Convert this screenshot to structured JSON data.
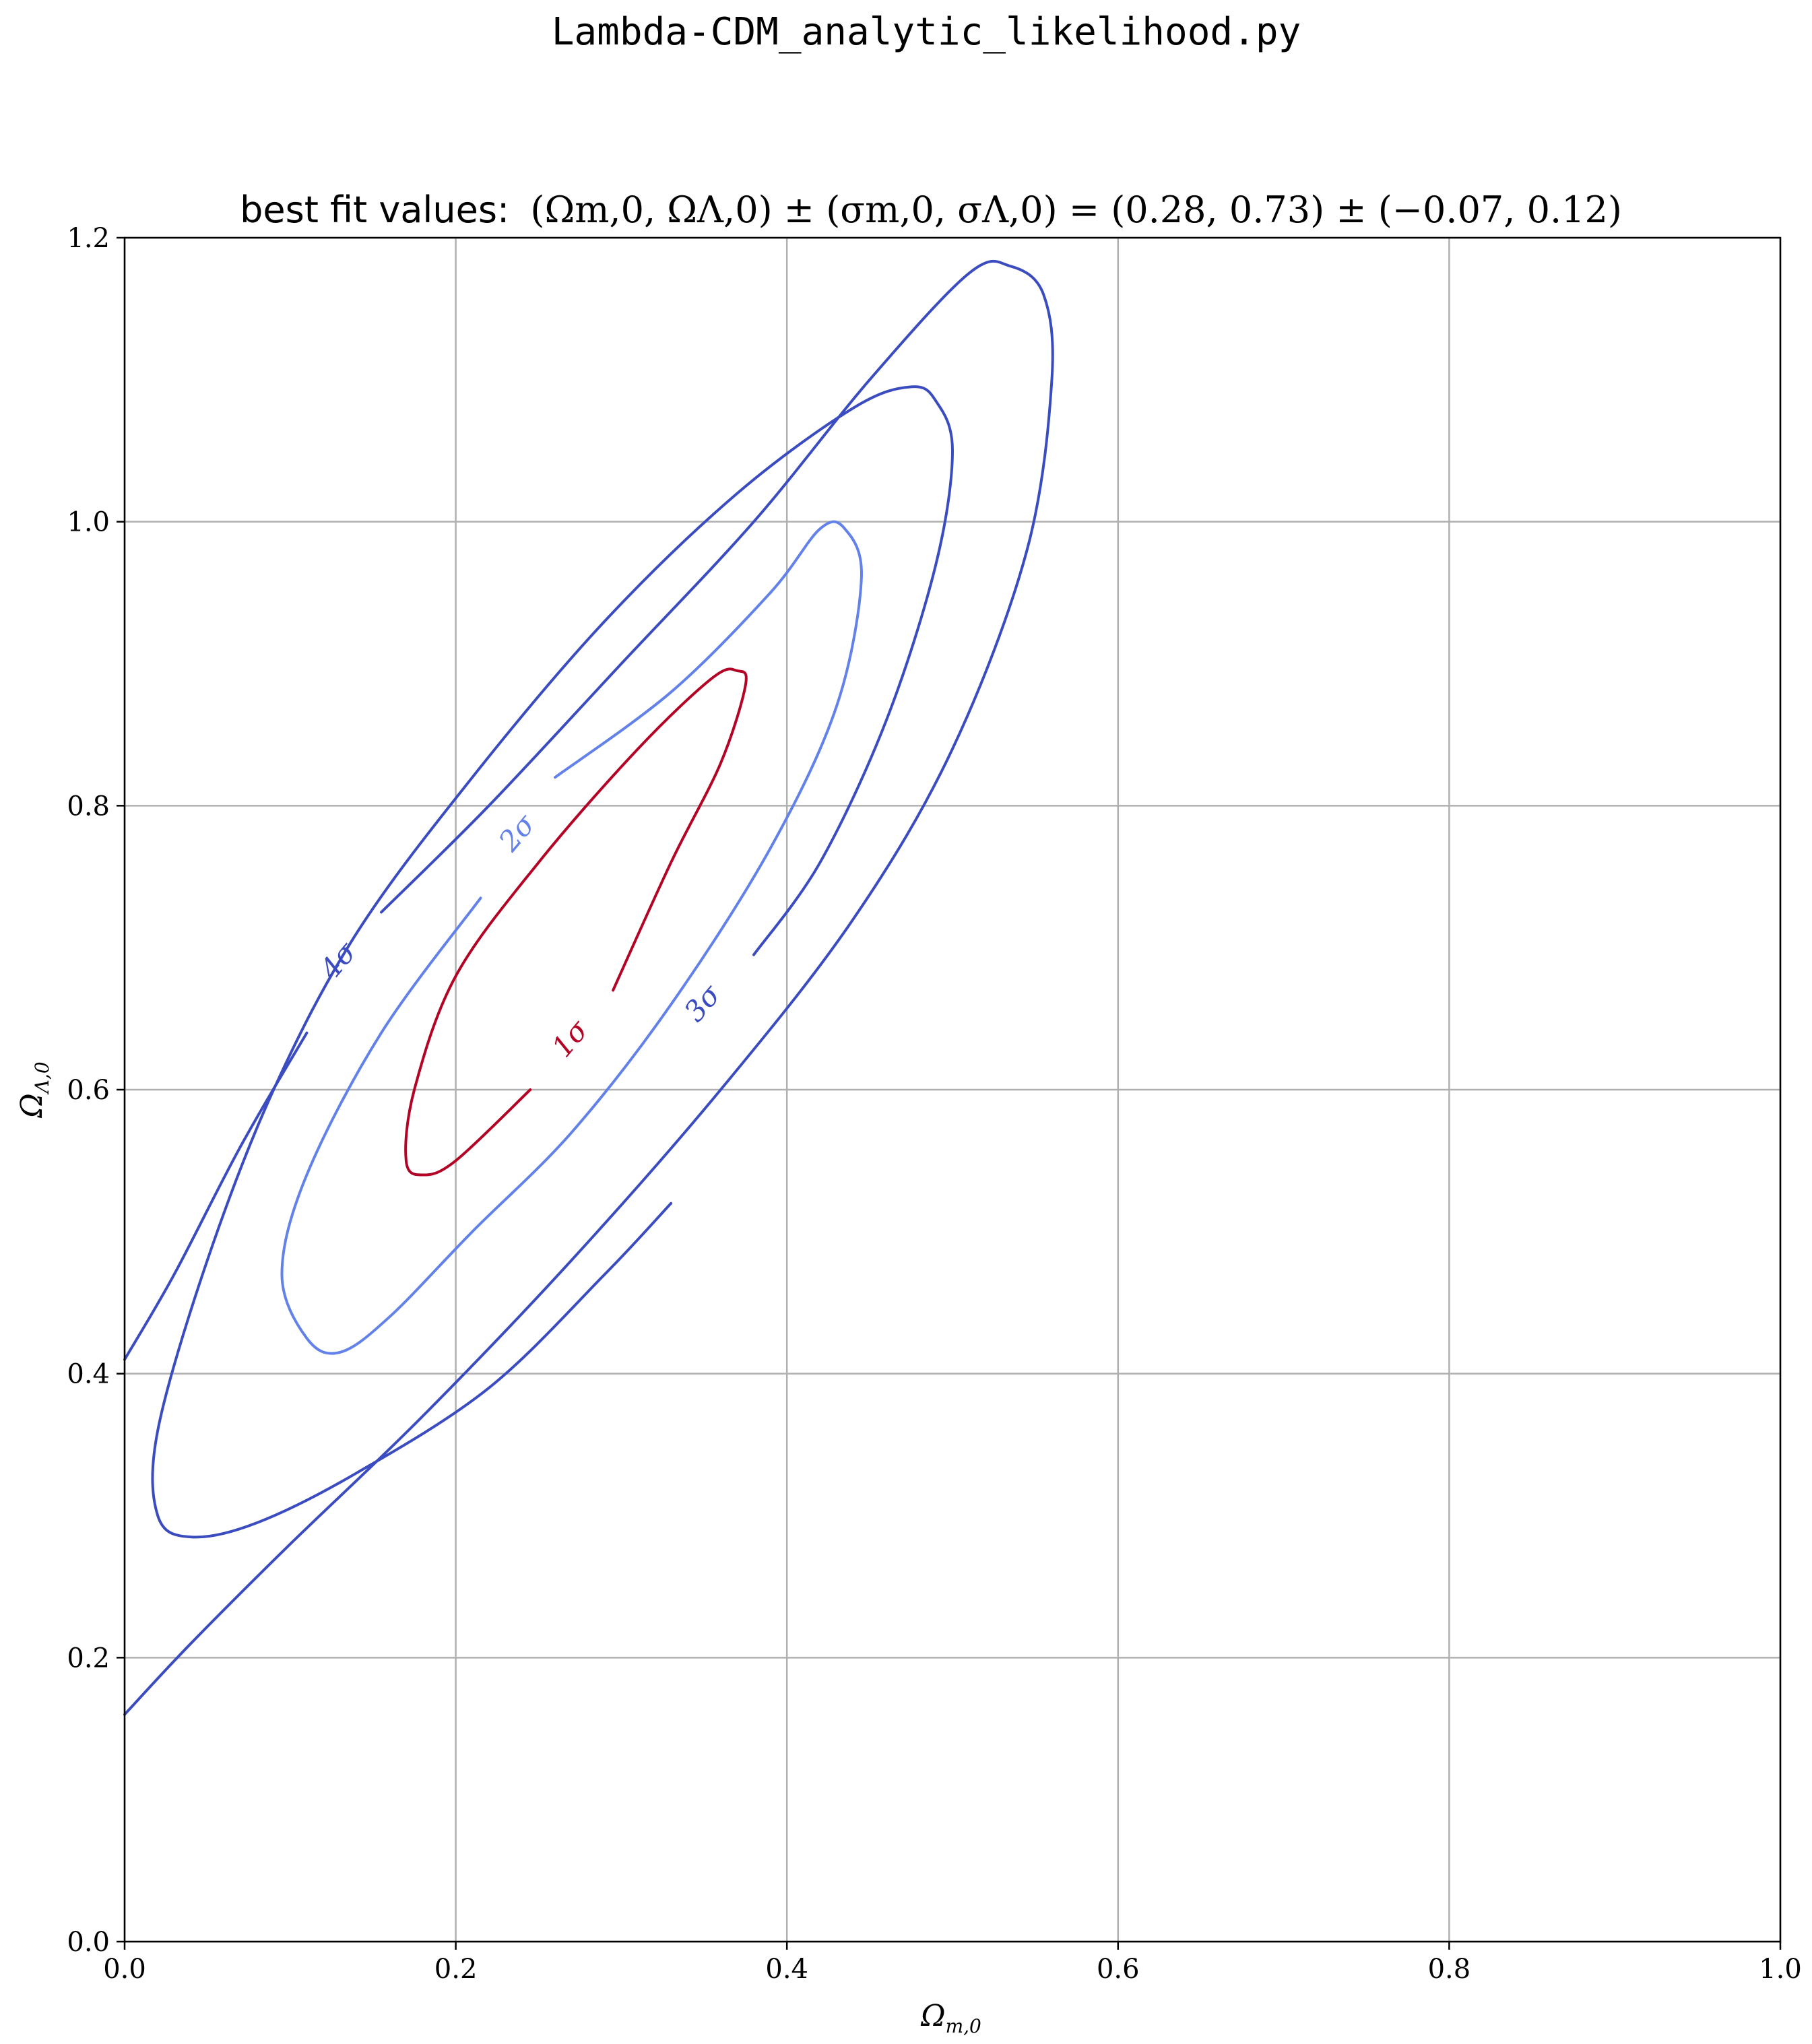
{
  "chart_data": {
    "type": "contour",
    "suptitle": "Lambda-CDM_analytic_likelihood.py",
    "title_prefix": "best fit values:",
    "title_math": "(Ωm,0, ΩΛ,0) ± (σm,0, σΛ,0) = (0.28, 0.73) ± (−0.07, 0.12)",
    "xlabel": {
      "symbol": "Ω",
      "sub": "m,0"
    },
    "ylabel": {
      "symbol": "Ω",
      "sub": "Λ,0"
    },
    "xlim": [
      0.0,
      1.0
    ],
    "ylim": [
      0.0,
      1.2
    ],
    "xticks": [
      "0.0",
      "0.2",
      "0.4",
      "0.6",
      "0.8",
      "1.0"
    ],
    "yticks": [
      "0.0",
      "0.2",
      "0.4",
      "0.6",
      "0.8",
      "1.0",
      "1.2"
    ],
    "xtick_values": [
      0.0,
      0.2,
      0.4,
      0.6,
      0.8,
      1.0
    ],
    "ytick_values": [
      0.0,
      0.2,
      0.4,
      0.6,
      0.8,
      1.0,
      1.2
    ],
    "grid": true,
    "levels": [
      {
        "label": "1σ",
        "color": "#b40426",
        "points": [
          [
            0.295,
            0.67
          ],
          [
            0.33,
            0.76
          ],
          [
            0.36,
            0.83
          ],
          [
            0.375,
            0.885
          ],
          [
            0.37,
            0.895
          ],
          [
            0.355,
            0.89
          ],
          [
            0.31,
            0.84
          ],
          [
            0.25,
            0.76
          ],
          [
            0.2,
            0.68
          ],
          [
            0.175,
            0.6
          ],
          [
            0.17,
            0.55
          ],
          [
            0.18,
            0.54
          ],
          [
            0.2,
            0.55
          ],
          [
            0.245,
            0.6
          ]
        ],
        "label_pos": [
          0.27,
          0.635
        ]
      },
      {
        "label": "2σ",
        "color": "#6282ea",
        "points": [
          [
            0.26,
            0.82
          ],
          [
            0.33,
            0.88
          ],
          [
            0.39,
            0.95
          ],
          [
            0.42,
            0.995
          ],
          [
            0.435,
            0.995
          ],
          [
            0.445,
            0.96
          ],
          [
            0.43,
            0.87
          ],
          [
            0.39,
            0.77
          ],
          [
            0.33,
            0.66
          ],
          [
            0.27,
            0.57
          ],
          [
            0.21,
            0.5
          ],
          [
            0.16,
            0.44
          ],
          [
            0.13,
            0.415
          ],
          [
            0.11,
            0.425
          ],
          [
            0.095,
            0.47
          ],
          [
            0.11,
            0.54
          ],
          [
            0.155,
            0.64
          ],
          [
            0.215,
            0.735
          ]
        ],
        "label_pos": [
          0.238,
          0.78
        ]
      },
      {
        "label": "3σ",
        "color": "#3b4cc0",
        "points": [
          [
            0.38,
            0.695
          ],
          [
            0.42,
            0.76
          ],
          [
            0.46,
            0.86
          ],
          [
            0.49,
            0.97
          ],
          [
            0.5,
            1.05
          ],
          [
            0.49,
            1.085
          ],
          [
            0.475,
            1.095
          ],
          [
            0.44,
            1.08
          ],
          [
            0.37,
            1.02
          ],
          [
            0.29,
            0.93
          ],
          [
            0.21,
            0.82
          ],
          [
            0.14,
            0.71
          ],
          [
            0.09,
            0.6
          ],
          [
            0.05,
            0.48
          ],
          [
            0.02,
            0.36
          ],
          [
            0.02,
            0.3
          ],
          [
            0.04,
            0.285
          ],
          [
            0.08,
            0.295
          ],
          [
            0.14,
            0.33
          ],
          [
            0.22,
            0.39
          ],
          [
            0.29,
            0.47
          ],
          [
            0.33,
            0.52
          ]
        ],
        "label_pos": [
          0.35,
          0.66
        ]
      },
      {
        "label": "4σ",
        "color": "#3b4cc0",
        "points": [
          [
            0.155,
            0.725
          ],
          [
            0.22,
            0.8
          ],
          [
            0.3,
            0.9
          ],
          [
            0.38,
            1.0
          ],
          [
            0.45,
            1.1
          ],
          [
            0.51,
            1.175
          ],
          [
            0.535,
            1.18
          ],
          [
            0.555,
            1.16
          ],
          [
            0.56,
            1.1
          ],
          [
            0.545,
            0.98
          ],
          [
            0.5,
            0.84
          ],
          [
            0.44,
            0.72
          ],
          [
            0.36,
            0.6
          ],
          [
            0.27,
            0.48
          ],
          [
            0.18,
            0.37
          ],
          [
            0.1,
            0.28
          ],
          [
            0.04,
            0.21
          ],
          [
            0.0,
            0.16
          ]
        ],
        "extra_segment": [
          [
            0.0,
            0.41
          ],
          [
            0.03,
            0.47
          ],
          [
            0.07,
            0.56
          ],
          [
            0.11,
            0.64
          ]
        ],
        "label_pos": [
          0.13,
          0.69
        ]
      }
    ]
  }
}
